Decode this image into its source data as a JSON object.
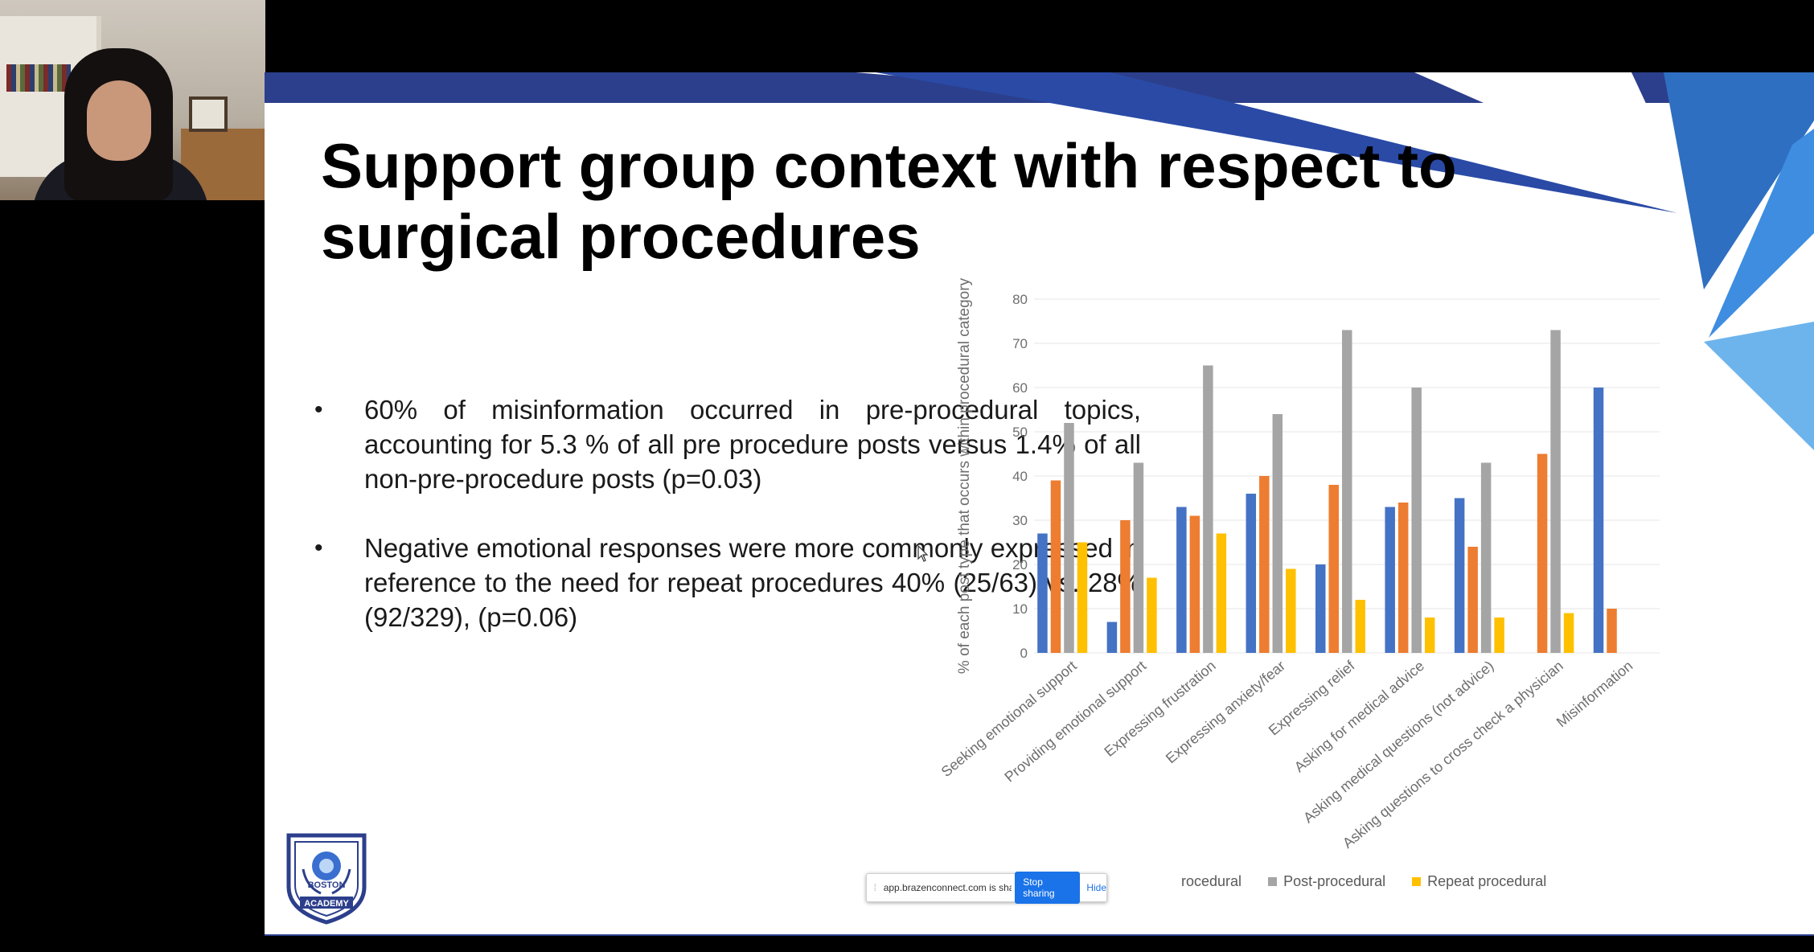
{
  "slide": {
    "title": "Support group context with respect to surgical procedures",
    "bullets": [
      "60% of misinformation occurred in pre-procedural topics, accounting for 5.3 % of all pre procedure posts versus 1.4% of all non-pre-procedure posts (p=0.03)",
      "Negative emotional responses were more commonly expressed in reference to the need for repeat procedures 40% (25/63) vs. 28% (92/329), (p=0.06)"
    ],
    "bullet_glyph": "•",
    "logo": {
      "line1": "BOSTON",
      "line2": "ACADEMY"
    }
  },
  "chart_data": {
    "type": "bar",
    "ylabel": "% of each post type that occurs within procedural category",
    "ylim": [
      0,
      80
    ],
    "yticks": [
      0,
      10,
      20,
      30,
      40,
      50,
      60,
      70,
      80
    ],
    "grid": true,
    "legend_position": "bottom",
    "categories": [
      "Seeking emotional support",
      "Providing emotional support",
      "Expressing frustration",
      "Expressing anxiety/fear",
      "Expressing relief",
      "Asking for medical advice",
      "Asking medical questions (not advice)",
      "Asking questions to cross check a physician",
      "Misinformation"
    ],
    "series": [
      {
        "name": "Pre-procedural",
        "color": "#4472c4",
        "values": [
          27,
          7,
          33,
          36,
          20,
          33,
          35,
          0,
          60
        ]
      },
      {
        "name": "Peri-procedural",
        "color": "#ed7d31",
        "values": [
          39,
          30,
          31,
          40,
          38,
          34,
          24,
          45,
          10
        ]
      },
      {
        "name": "Post-procedural",
        "color": "#a5a5a5",
        "values": [
          52,
          43,
          65,
          54,
          73,
          60,
          43,
          73,
          0
        ]
      },
      {
        "name": "Repeat procedural",
        "color": "#ffc000",
        "values": [
          25,
          17,
          27,
          19,
          12,
          8,
          8,
          9,
          0
        ]
      }
    ],
    "legend_visible_text": [
      "rocedural",
      "Post-procedural",
      "Repeat procedural"
    ]
  },
  "share_bar": {
    "grip": "⁞",
    "message": "app.brazenconnect.com is sharing your screen.",
    "stop_label": "Stop sharing",
    "hide_label": "Hide"
  }
}
